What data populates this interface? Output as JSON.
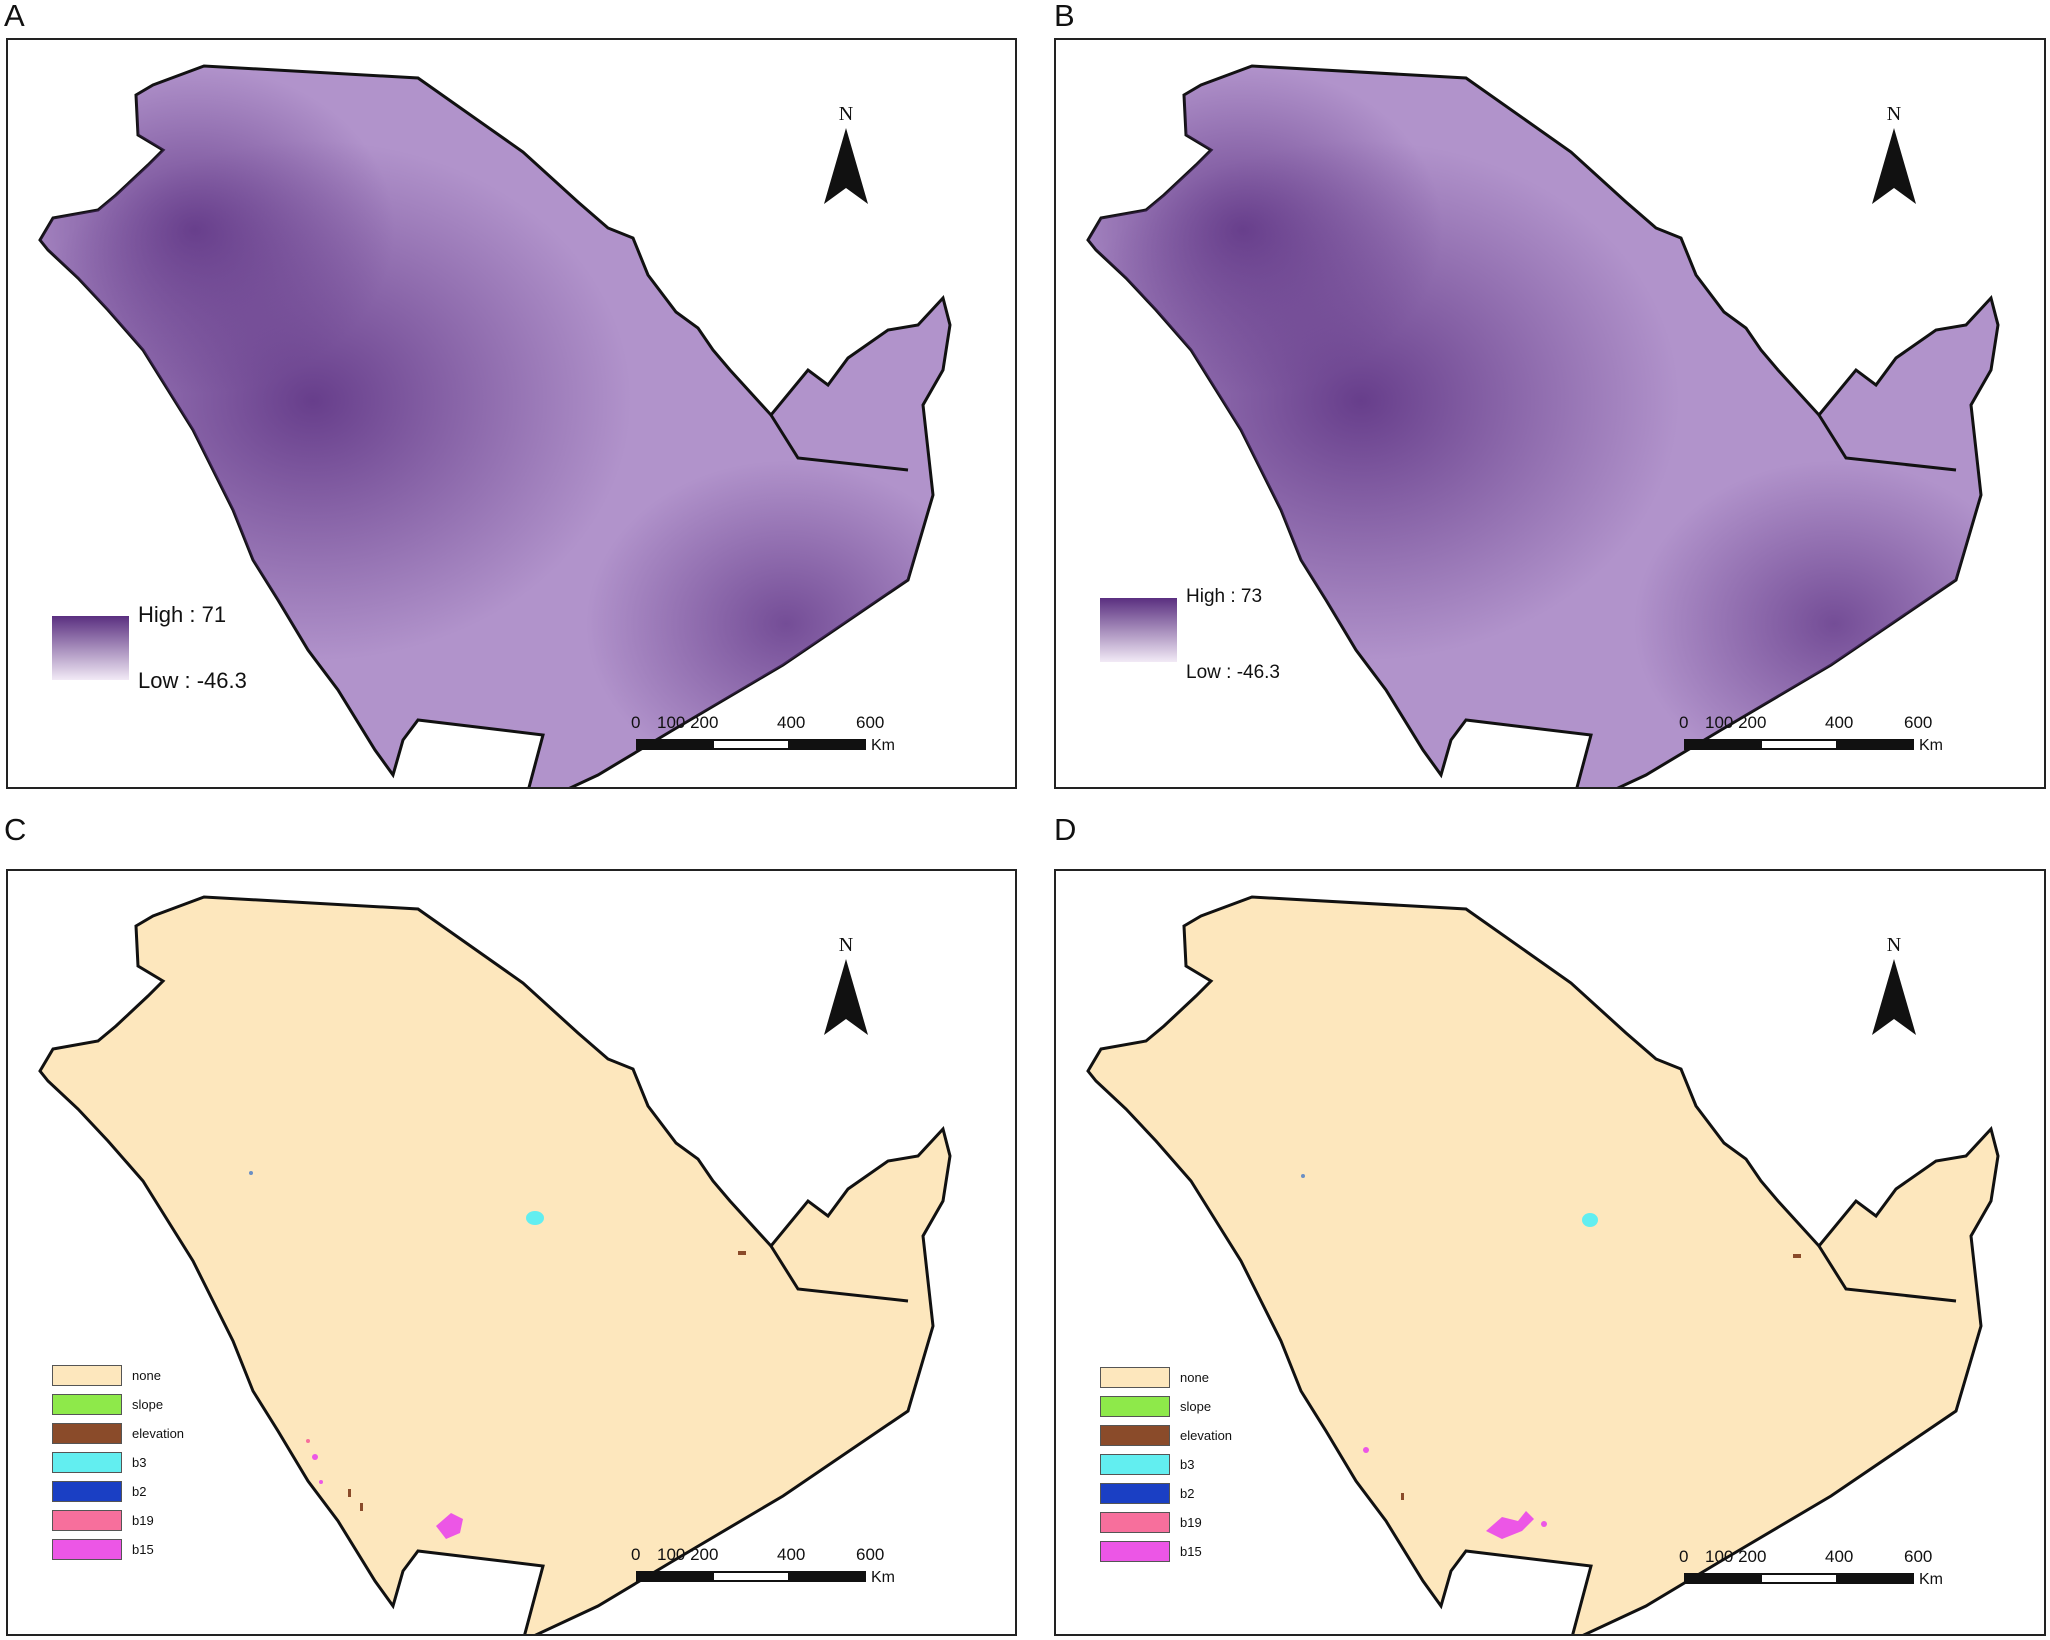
{
  "panels": [
    {
      "letter": "A",
      "type": "gradient",
      "north": "N",
      "legend": {
        "high": "High : 71",
        "low": "Low : -46.3"
      },
      "scale": {
        "ticks": [
          "0",
          "100 200",
          "400",
          "600"
        ],
        "unit": "Km"
      }
    },
    {
      "letter": "B",
      "type": "gradient",
      "north": "N",
      "legend": {
        "high": "High : 73",
        "low": "Low : -46.3"
      },
      "scale": {
        "ticks": [
          "0",
          "100 200",
          "400",
          "600"
        ],
        "unit": "Km"
      }
    },
    {
      "letter": "C",
      "type": "categorical",
      "north": "N",
      "scale": {
        "ticks": [
          "0",
          "100 200",
          "400",
          "600"
        ],
        "unit": "Km"
      }
    },
    {
      "letter": "D",
      "type": "categorical",
      "north": "N",
      "scale": {
        "ticks": [
          "0",
          "100 200",
          "400",
          "600"
        ],
        "unit": "Km"
      }
    }
  ],
  "categories": [
    {
      "label": "none",
      "color": "#fde7bd"
    },
    {
      "label": "slope",
      "color": "#8ee94a"
    },
    {
      "label": "elevation",
      "color": "#8a4b2a"
    },
    {
      "label": "b3",
      "color": "#62eef0"
    },
    {
      "label": "b2",
      "color": "#1a3fc4"
    },
    {
      "label": "b19",
      "color": "#f76f9c"
    },
    {
      "label": "b15",
      "color": "#ec56e6"
    }
  ],
  "colors": {
    "gradient_high": "#5a2f80",
    "gradient_low": "#f2eaf6",
    "map_fill": "#a886c4",
    "land_fill": "#fde7bd",
    "border": "#111111"
  }
}
